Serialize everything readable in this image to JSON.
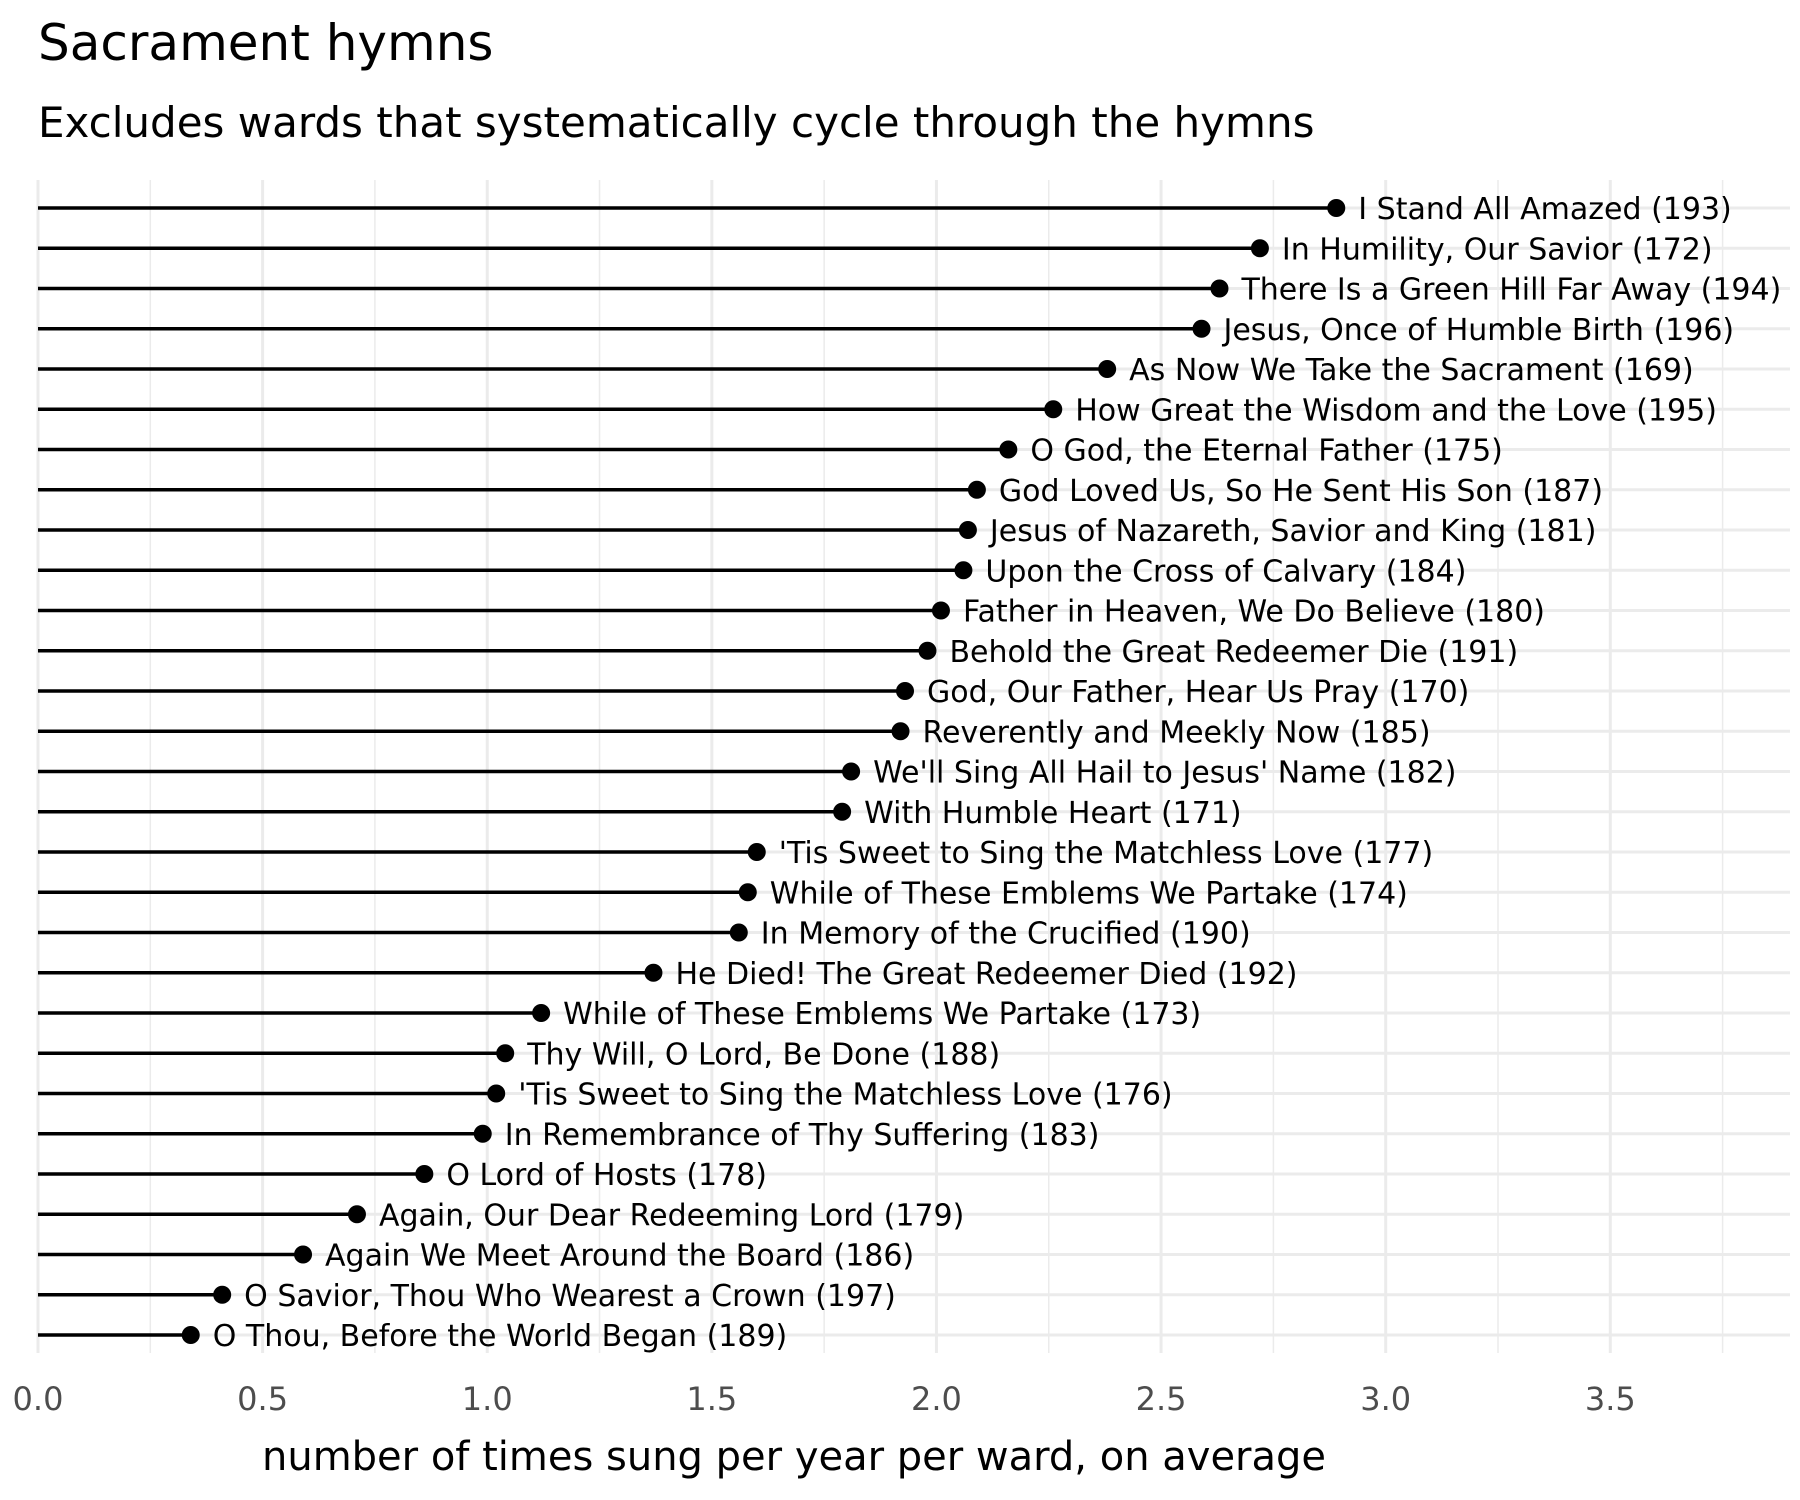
{
  "chart_data": {
    "type": "lollipop",
    "title": "Sacrament hymns",
    "subtitle": "Excludes wards that systematically cycle through the hymns",
    "xlabel": "number of times sung per year per ward, on average",
    "ylabel": "",
    "xlim": [
      0,
      3.9
    ],
    "xticks": [
      "0.0",
      "0.5",
      "1.0",
      "1.5",
      "2.0",
      "2.5",
      "3.0",
      "3.5"
    ],
    "xtick_values": [
      0,
      0.5,
      1.0,
      1.5,
      2.0,
      2.5,
      3.0,
      3.5
    ],
    "grid": true,
    "categories": [
      "I Stand All Amazed (193)",
      "In Humility, Our Savior (172)",
      "There Is a Green Hill Far Away (194)",
      "Jesus, Once of Humble Birth (196)",
      "As Now We Take the Sacrament (169)",
      "How Great the Wisdom and the Love (195)",
      "O God, the Eternal Father (175)",
      "God Loved Us, So He Sent His Son (187)",
      "Jesus of Nazareth, Savior and King (181)",
      "Upon the Cross of Calvary (184)",
      "Father in Heaven, We Do Believe (180)",
      "Behold the Great Redeemer Die (191)",
      "God, Our Father, Hear Us Pray (170)",
      "Reverently and Meekly Now (185)",
      "We'll Sing All Hail to Jesus' Name (182)",
      "With Humble Heart (171)",
      "'Tis Sweet to Sing the Matchless Love (177)",
      "While of These Emblems We Partake (174)",
      "In Memory of the Crucified (190)",
      "He Died! The Great Redeemer Died (192)",
      "While of These Emblems We Partake (173)",
      "Thy Will, O Lord, Be Done (188)",
      "'Tis Sweet to Sing the Matchless Love (176)",
      "In Remembrance of Thy Suffering (183)",
      "O Lord of Hosts (178)",
      "Again, Our Dear Redeeming Lord (179)",
      "Again We Meet Around the Board (186)",
      "O Savior, Thou Who Wearest a Crown (197)",
      "O Thou, Before the World Began (189)"
    ],
    "values": [
      2.89,
      2.72,
      2.63,
      2.59,
      2.38,
      2.26,
      2.16,
      2.09,
      2.07,
      2.06,
      2.01,
      1.98,
      1.93,
      1.92,
      1.81,
      1.79,
      1.6,
      1.58,
      1.56,
      1.37,
      1.12,
      1.04,
      1.02,
      0.99,
      0.86,
      0.71,
      0.59,
      0.41,
      0.34
    ]
  }
}
